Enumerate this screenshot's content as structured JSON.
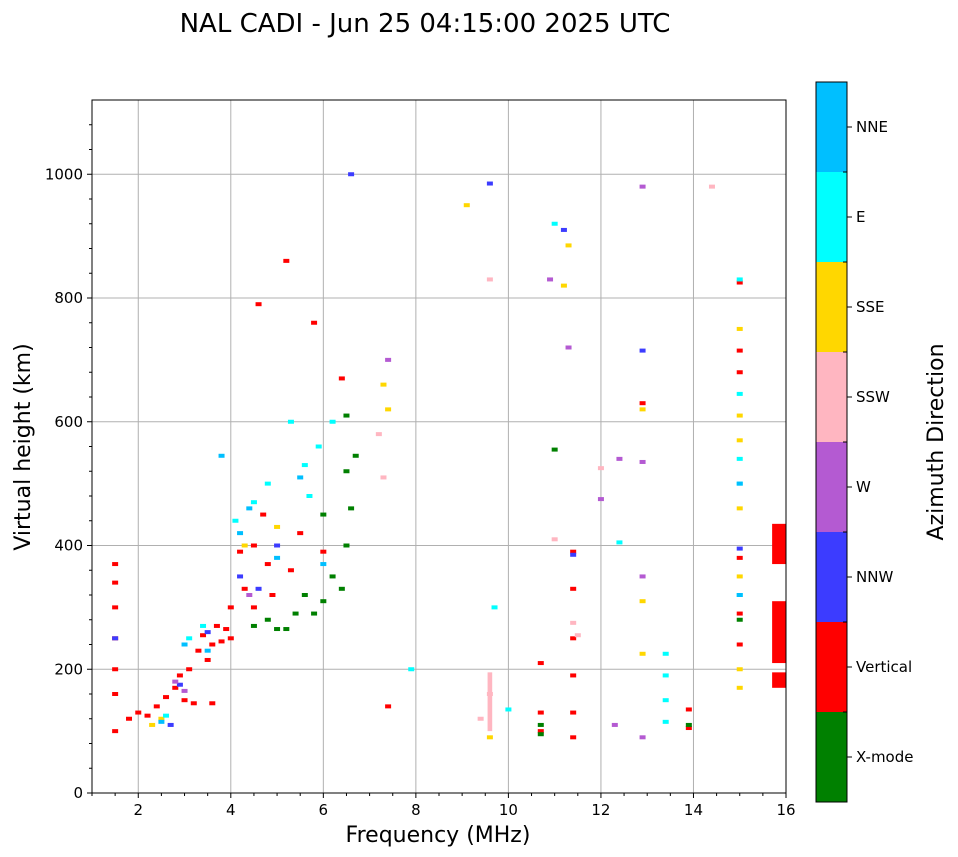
{
  "chart_data": {
    "type": "scatter",
    "title": "NAL CADI - Jun 25 04:15:00 2025 UTC",
    "xlabel": "Frequency (MHz)",
    "ylabel": "Virtual height (km)",
    "xlim": [
      1,
      16
    ],
    "ylim": [
      0,
      1120
    ],
    "xticks": [
      2,
      4,
      6,
      8,
      10,
      12,
      14,
      16
    ],
    "yticks": [
      0,
      200,
      400,
      600,
      800,
      1000
    ],
    "grid": true,
    "colorbar": {
      "title": "Azimuth Direction",
      "categories": [
        {
          "name": "X-mode",
          "color": "#008000"
        },
        {
          "name": "Vertical",
          "color": "#ff0000"
        },
        {
          "name": "NNW",
          "color": "#3c3cff"
        },
        {
          "name": "W",
          "color": "#b45ad2"
        },
        {
          "name": "SSW",
          "color": "#ffb6c1"
        },
        {
          "name": "SSE",
          "color": "#ffd700"
        },
        {
          "name": "E",
          "color": "#00ffff"
        },
        {
          "name": "NNE",
          "color": "#00bfff"
        }
      ]
    },
    "series": [
      {
        "name": "Vertical",
        "points": [
          [
            1.5,
            100
          ],
          [
            1.5,
            160
          ],
          [
            1.5,
            200
          ],
          [
            1.5,
            250
          ],
          [
            1.5,
            300
          ],
          [
            1.5,
            340
          ],
          [
            1.5,
            370
          ],
          [
            1.8,
            120
          ],
          [
            2.0,
            130
          ],
          [
            2.2,
            125
          ],
          [
            2.4,
            140
          ],
          [
            2.6,
            155
          ],
          [
            2.8,
            170
          ],
          [
            2.9,
            190
          ],
          [
            3.0,
            150
          ],
          [
            3.1,
            200
          ],
          [
            3.2,
            145
          ],
          [
            3.3,
            230
          ],
          [
            3.4,
            255
          ],
          [
            3.5,
            215
          ],
          [
            3.6,
            240
          ],
          [
            3.6,
            145
          ],
          [
            3.7,
            270
          ],
          [
            3.8,
            245
          ],
          [
            3.9,
            265
          ],
          [
            4.0,
            250
          ],
          [
            4.0,
            300
          ],
          [
            4.2,
            390
          ],
          [
            4.3,
            330
          ],
          [
            4.5,
            400
          ],
          [
            4.5,
            300
          ],
          [
            4.6,
            790
          ],
          [
            4.7,
            450
          ],
          [
            4.8,
            370
          ],
          [
            4.9,
            320
          ],
          [
            5.2,
            860
          ],
          [
            5.3,
            360
          ],
          [
            5.5,
            420
          ],
          [
            5.8,
            760
          ],
          [
            6.0,
            390
          ],
          [
            6.4,
            670
          ],
          [
            7.4,
            140
          ],
          [
            10.7,
            210
          ],
          [
            10.7,
            100
          ],
          [
            10.7,
            130
          ],
          [
            11.4,
            130
          ],
          [
            11.4,
            250
          ],
          [
            11.4,
            330
          ],
          [
            11.4,
            390
          ],
          [
            11.4,
            90
          ],
          [
            11.4,
            190
          ],
          [
            12.9,
            630
          ],
          [
            13.9,
            105
          ],
          [
            13.9,
            135
          ],
          [
            15.0,
            825
          ],
          [
            15.0,
            715
          ],
          [
            15.0,
            680
          ],
          [
            15.0,
            380
          ],
          [
            15.0,
            290
          ],
          [
            15.0,
            240
          ]
        ]
      },
      {
        "name": "X-mode",
        "points": [
          [
            4.5,
            270
          ],
          [
            4.8,
            280
          ],
          [
            5.0,
            265
          ],
          [
            5.2,
            265
          ],
          [
            5.4,
            290
          ],
          [
            5.6,
            320
          ],
          [
            5.8,
            290
          ],
          [
            6.0,
            310
          ],
          [
            6.2,
            350
          ],
          [
            6.4,
            330
          ],
          [
            6.5,
            520
          ],
          [
            6.6,
            460
          ],
          [
            6.5,
            400
          ],
          [
            6.7,
            545
          ],
          [
            6.5,
            610
          ],
          [
            6.0,
            450
          ],
          [
            10.7,
            95
          ],
          [
            10.7,
            110
          ],
          [
            11.0,
            555
          ],
          [
            13.9,
            110
          ],
          [
            15.0,
            280
          ]
        ]
      },
      {
        "name": "NNW",
        "points": [
          [
            1.5,
            250
          ],
          [
            2.7,
            110
          ],
          [
            2.9,
            175
          ],
          [
            3.5,
            260
          ],
          [
            4.2,
            350
          ],
          [
            4.6,
            330
          ],
          [
            5.0,
            400
          ],
          [
            6.6,
            1000
          ],
          [
            9.6,
            985
          ],
          [
            11.2,
            910
          ],
          [
            11.4,
            385
          ],
          [
            12.9,
            715
          ],
          [
            15.0,
            395
          ]
        ]
      },
      {
        "name": "W",
        "points": [
          [
            2.8,
            180
          ],
          [
            3.0,
            165
          ],
          [
            4.4,
            320
          ],
          [
            7.4,
            700
          ],
          [
            10.9,
            830
          ],
          [
            11.3,
            720
          ],
          [
            12.0,
            475
          ],
          [
            12.4,
            540
          ],
          [
            12.9,
            980
          ],
          [
            12.9,
            535
          ],
          [
            12.9,
            350
          ],
          [
            12.3,
            110
          ],
          [
            12.9,
            90
          ]
        ]
      },
      {
        "name": "SSW",
        "points": [
          [
            7.2,
            580
          ],
          [
            7.3,
            510
          ],
          [
            9.6,
            830
          ],
          [
            9.6,
            160
          ],
          [
            9.4,
            120
          ],
          [
            11.0,
            410
          ],
          [
            11.4,
            275
          ],
          [
            11.5,
            255
          ],
          [
            12.0,
            525
          ],
          [
            14.4,
            980
          ]
        ]
      },
      {
        "name": "SSE",
        "points": [
          [
            2.3,
            110
          ],
          [
            2.5,
            120
          ],
          [
            4.3,
            400
          ],
          [
            5.0,
            430
          ],
          [
            7.3,
            660
          ],
          [
            7.4,
            620
          ],
          [
            9.1,
            950
          ],
          [
            11.3,
            885
          ],
          [
            11.2,
            820
          ],
          [
            12.9,
            620
          ],
          [
            12.9,
            310
          ],
          [
            12.9,
            225
          ],
          [
            15.0,
            750
          ],
          [
            15.0,
            610
          ],
          [
            15.0,
            570
          ],
          [
            15.0,
            460
          ],
          [
            15.0,
            350
          ],
          [
            15.0,
            200
          ],
          [
            15.0,
            170
          ],
          [
            9.6,
            90
          ]
        ]
      },
      {
        "name": "E",
        "points": [
          [
            2.6,
            125
          ],
          [
            3.1,
            250
          ],
          [
            3.4,
            270
          ],
          [
            4.1,
            440
          ],
          [
            4.5,
            470
          ],
          [
            4.8,
            500
          ],
          [
            5.3,
            600
          ],
          [
            5.6,
            530
          ],
          [
            5.9,
            560
          ],
          [
            6.2,
            600
          ],
          [
            5.7,
            480
          ],
          [
            9.7,
            300
          ],
          [
            7.9,
            200
          ],
          [
            10.0,
            135
          ],
          [
            11.0,
            920
          ],
          [
            12.4,
            405
          ],
          [
            13.4,
            225
          ],
          [
            13.4,
            190
          ],
          [
            13.4,
            150
          ],
          [
            13.4,
            115
          ],
          [
            15.0,
            830
          ],
          [
            15.0,
            645
          ],
          [
            15.0,
            540
          ],
          [
            15.0,
            500
          ],
          [
            15.0,
            320
          ]
        ]
      },
      {
        "name": "NNE",
        "points": [
          [
            2.5,
            115
          ],
          [
            3.0,
            240
          ],
          [
            3.5,
            230
          ],
          [
            3.8,
            545
          ],
          [
            4.2,
            420
          ],
          [
            4.4,
            460
          ],
          [
            5.0,
            380
          ],
          [
            6.0,
            370
          ],
          [
            5.5,
            510
          ],
          [
            15.0,
            320
          ],
          [
            15.0,
            500
          ]
        ]
      }
    ],
    "bands": [
      {
        "name": "Vertical",
        "freq": [
          15.7,
          16.0
        ],
        "heights": [
          [
            170,
            195
          ],
          [
            210,
            310
          ],
          [
            370,
            435
          ]
        ]
      },
      {
        "name": "SSW",
        "freq": [
          9.55,
          9.65
        ],
        "heights": [
          [
            100,
            195
          ]
        ]
      }
    ]
  }
}
